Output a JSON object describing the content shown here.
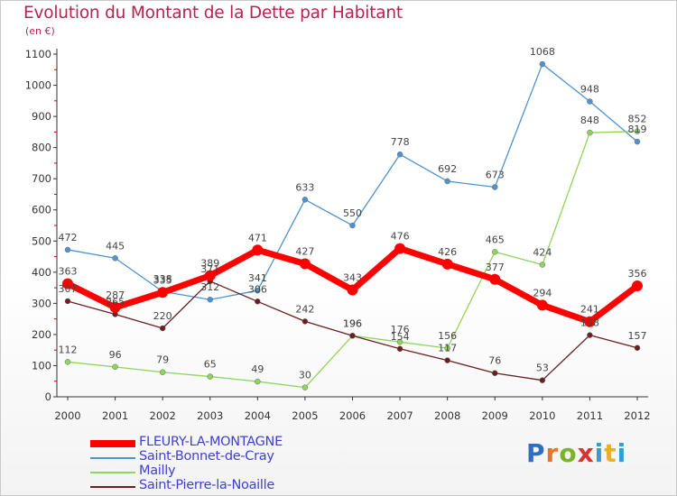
{
  "header": {
    "title": "Evolution du Montant de la Dette par Habitant",
    "unit": "(en €)"
  },
  "logo": {
    "text": "Proxiti"
  },
  "colors": {
    "title": "#b6234f",
    "legend_text": "#3f3fd8",
    "axis": "#333333",
    "grid_ticks": "#cc0000"
  },
  "chart_data": {
    "type": "line",
    "title": "Evolution du Montant de la Dette par Habitant",
    "ylabel": "(en €)",
    "xlabel": "",
    "x": [
      "2000",
      "2001",
      "2002",
      "2003",
      "2004",
      "2005",
      "2006",
      "2007",
      "2008",
      "2009",
      "2010",
      "2011",
      "2012"
    ],
    "ylim": [
      0,
      1100
    ],
    "yticks": [
      0,
      100,
      200,
      300,
      400,
      500,
      600,
      700,
      800,
      900,
      1000,
      1100
    ],
    "grid": false,
    "legend_position": "bottom-left",
    "series": [
      {
        "name": "FLEURY-LA-MONTAGNE",
        "color": "#ff0000",
        "values": [
          363,
          287,
          335,
          389,
          471,
          427,
          343,
          476,
          426,
          377,
          294,
          241,
          356
        ]
      },
      {
        "name": "Saint-Bonnet-de-Cray",
        "color": "#4f93cf",
        "values": [
          472,
          445,
          338,
          312,
          341,
          633,
          550,
          778,
          692,
          673,
          1068,
          948,
          819
        ]
      },
      {
        "name": "Mailly",
        "color": "#8fd45b",
        "values": [
          112,
          96,
          79,
          65,
          49,
          30,
          196,
          176,
          156,
          465,
          424,
          848,
          852
        ]
      },
      {
        "name": "Saint-Pierre-la-Noaille",
        "color": "#6b1f1f",
        "values": [
          307,
          265,
          220,
          371,
          306,
          242,
          196,
          154,
          117,
          76,
          53,
          198,
          157
        ]
      }
    ]
  }
}
